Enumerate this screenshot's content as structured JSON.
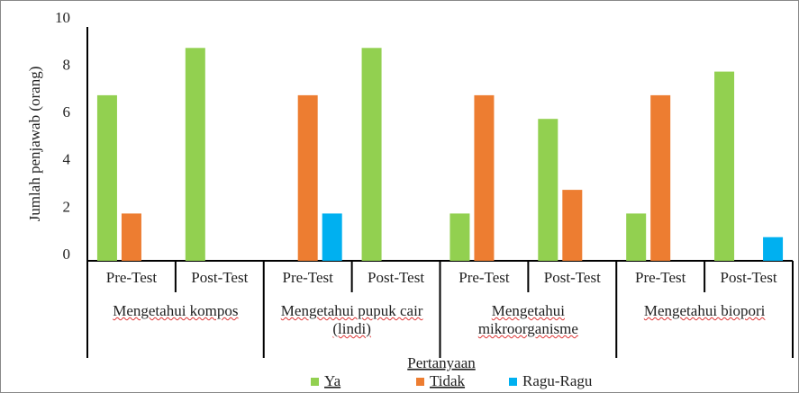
{
  "chart_data": {
    "type": "bar",
    "y_label": "Jumlah penjawab (orang)",
    "x_label": "Pertanyaan",
    "categories": [
      "Pre-Test",
      "Post-Test",
      "Pre-Test",
      "Post-Test",
      "Pre-Test",
      "Post-Test",
      "Pre-Test",
      "Post-Test"
    ],
    "groups": [
      "Mengetahui kompos",
      "Mengetahui pupuk cair (lindi)",
      "Mengetahui mikroorganisme",
      "Mengetahui biopori"
    ],
    "series": [
      {
        "name": "Ya",
        "color": "#92d050",
        "values": [
          7,
          9,
          0,
          9,
          2,
          6,
          2,
          8
        ]
      },
      {
        "name": "Tidak",
        "color": "#ed7d31",
        "values": [
          2,
          0,
          7,
          0,
          7,
          3,
          7,
          0
        ]
      },
      {
        "name": "Ragu-Ragu",
        "color": "#00b0f0",
        "values": [
          0,
          0,
          2,
          0,
          0,
          0,
          0,
          1
        ]
      }
    ],
    "ylim": [
      0,
      10
    ],
    "yticks": [
      0,
      2,
      4,
      6,
      8,
      10
    ],
    "grid": false
  }
}
